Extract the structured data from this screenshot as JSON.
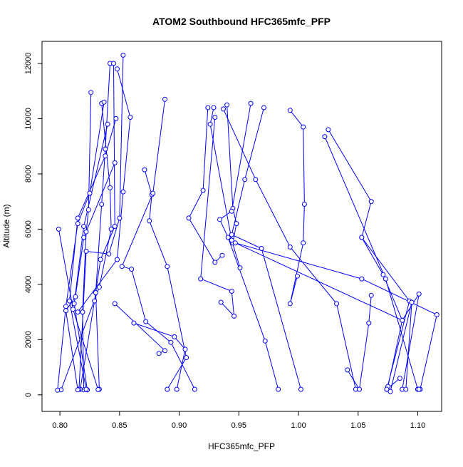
{
  "chart_data": {
    "type": "scatter",
    "mode": "lines+markers",
    "title": "ATOM2 Southbound HFC365mfc_PFP",
    "xlabel": "HFC365mfc_PFP",
    "ylabel": "Altitude (m)",
    "xlim": [
      0.785,
      1.12
    ],
    "ylim": [
      -600,
      12800
    ],
    "xticks": [
      0.8,
      0.85,
      0.9,
      0.95,
      1.0,
      1.05,
      1.1
    ],
    "xtick_labels": [
      "0.80",
      "0.85",
      "0.90",
      "0.95",
      "1.00",
      "1.05",
      "1.10"
    ],
    "yticks": [
      0,
      2000,
      4000,
      6000,
      8000,
      10000,
      12000
    ],
    "ytick_labels": [
      "0",
      "2000",
      "4000",
      "6000",
      "8000",
      "10000",
      "12000"
    ],
    "grid": false,
    "color": "#0000ff",
    "profiles": [
      [
        [
          0.826,
          10950
        ],
        [
          0.824,
          6700
        ],
        [
          0.822,
          5900
        ],
        [
          0.819,
          3000
        ],
        [
          0.82,
          180
        ]
      ],
      [
        [
          0.842,
          12000
        ],
        [
          0.838,
          8900
        ],
        [
          0.835,
          6900
        ],
        [
          0.83,
          3700
        ],
        [
          0.833,
          200
        ]
      ],
      [
        [
          0.845,
          12000
        ],
        [
          0.846,
          6100
        ],
        [
          0.834,
          4900
        ],
        [
          0.829,
          3400
        ],
        [
          0.817,
          200
        ]
      ],
      [
        [
          0.853,
          12300
        ],
        [
          0.85,
          6400
        ],
        [
          0.841,
          5100
        ],
        [
          0.822,
          5200
        ],
        [
          0.816,
          200
        ]
      ],
      [
        [
          0.835,
          10550
        ],
        [
          0.842,
          7500
        ],
        [
          0.843,
          6000
        ],
        [
          0.833,
          3900
        ],
        [
          0.801,
          180
        ]
      ],
      [
        [
          0.837,
          10600
        ],
        [
          0.825,
          7300
        ],
        [
          0.815,
          6200
        ],
        [
          0.805,
          3200
        ],
        [
          0.798,
          170
        ]
      ],
      [
        [
          0.848,
          11800
        ],
        [
          0.859,
          10050
        ],
        [
          0.853,
          7350
        ],
        [
          0.848,
          4900
        ],
        [
          0.815,
          3000
        ]
      ],
      [
        [
          0.84,
          9800
        ],
        [
          0.82,
          6100
        ],
        [
          0.812,
          3300
        ],
        [
          0.823,
          180
        ]
      ],
      [
        [
          0.847,
          10000
        ],
        [
          0.838,
          8650
        ],
        [
          0.815,
          6400
        ],
        [
          0.808,
          3400
        ],
        [
          0.822,
          200
        ]
      ],
      [
        [
          0.846,
          8400
        ],
        [
          0.82,
          5700
        ],
        [
          0.813,
          3550
        ],
        [
          0.805,
          3050
        ],
        [
          0.815,
          180
        ]
      ],
      [
        [
          0.799,
          6000
        ],
        [
          0.811,
          3100
        ],
        [
          0.832,
          190
        ]
      ],
      [
        [
          0.871,
          8150
        ],
        [
          0.877,
          7250
        ],
        [
          0.875,
          6300
        ],
        [
          0.89,
          4650
        ],
        [
          0.906,
          1350
        ],
        [
          0.89,
          200
        ]
      ],
      [
        [
          0.888,
          10700
        ],
        [
          0.878,
          7300
        ],
        [
          0.852,
          4650
        ],
        [
          0.86,
          4550
        ],
        [
          0.872,
          2650
        ],
        [
          0.893,
          1900
        ],
        [
          0.913,
          200
        ]
      ],
      [
        [
          0.862,
          2600
        ],
        [
          0.896,
          2100
        ],
        [
          0.905,
          1650
        ],
        [
          0.898,
          200
        ]
      ],
      [
        [
          0.883,
          1500
        ],
        [
          0.888,
          1600
        ],
        [
          0.846,
          3300
        ]
      ],
      [
        [
          0.924,
          10400
        ],
        [
          0.92,
          7400
        ],
        [
          0.908,
          6400
        ],
        [
          0.93,
          4800
        ],
        [
          0.936,
          5050
        ]
      ],
      [
        [
          0.94,
          10500
        ],
        [
          0.945,
          6750
        ],
        [
          0.948,
          6200
        ],
        [
          0.945,
          5500
        ]
      ],
      [
        [
          0.929,
          10400
        ],
        [
          0.926,
          9800
        ],
        [
          0.944,
          5600
        ],
        [
          0.951,
          4600
        ]
      ],
      [
        [
          0.93,
          10050
        ],
        [
          0.918,
          4200
        ],
        [
          0.944,
          3750
        ],
        [
          0.946,
          2850
        ],
        [
          0.935,
          3350
        ]
      ],
      [
        [
          0.96,
          10550
        ],
        [
          0.944,
          6650
        ],
        [
          0.934,
          6350
        ],
        [
          0.941,
          5700
        ],
        [
          0.972,
          1950
        ],
        [
          0.983,
          200
        ]
      ],
      [
        [
          0.971,
          10400
        ],
        [
          0.955,
          7800
        ],
        [
          0.944,
          5800
        ],
        [
          0.969,
          5300
        ],
        [
          1.002,
          200
        ]
      ],
      [
        [
          0.993,
          10300
        ],
        [
          1.004,
          9700
        ],
        [
          1.005,
          6900
        ],
        [
          1.004,
          5500
        ],
        [
          0.993,
          3300
        ],
        [
          0.999,
          4300
        ]
      ],
      [
        [
          0.937,
          10350
        ],
        [
          0.964,
          7800
        ],
        [
          0.993,
          5350
        ],
        [
          1.032,
          3300
        ],
        [
          1.048,
          200
        ]
      ],
      [
        [
          1.025,
          9600
        ],
        [
          1.061,
          7000
        ],
        [
          1.053,
          5700
        ],
        [
          1.093,
          3400
        ],
        [
          1.074,
          200
        ]
      ],
      [
        [
          1.053,
          5700
        ],
        [
          1.071,
          4350
        ],
        [
          1.087,
          2700
        ],
        [
          1.101,
          3650
        ],
        [
          1.087,
          200
        ]
      ],
      [
        [
          1.1,
          200
        ],
        [
          1.102,
          200
        ],
        [
          1.116,
          2900
        ],
        [
          1.053,
          4200
        ],
        [
          0.947,
          5500
        ],
        [
          1.087,
          2700
        ],
        [
          1.075,
          300
        ]
      ],
      [
        [
          1.022,
          9350
        ],
        [
          1.073,
          4200
        ],
        [
          1.1,
          200
        ],
        [
          1.101,
          200
        ]
      ],
      [
        [
          1.041,
          900
        ],
        [
          1.051,
          200
        ],
        [
          1.059,
          2600
        ],
        [
          1.061,
          3600
        ]
      ],
      [
        [
          1.085,
          600
        ],
        [
          1.074,
          200
        ],
        [
          1.077,
          120
        ],
        [
          1.095,
          3350
        ],
        [
          1.09,
          200
        ]
      ]
    ]
  }
}
